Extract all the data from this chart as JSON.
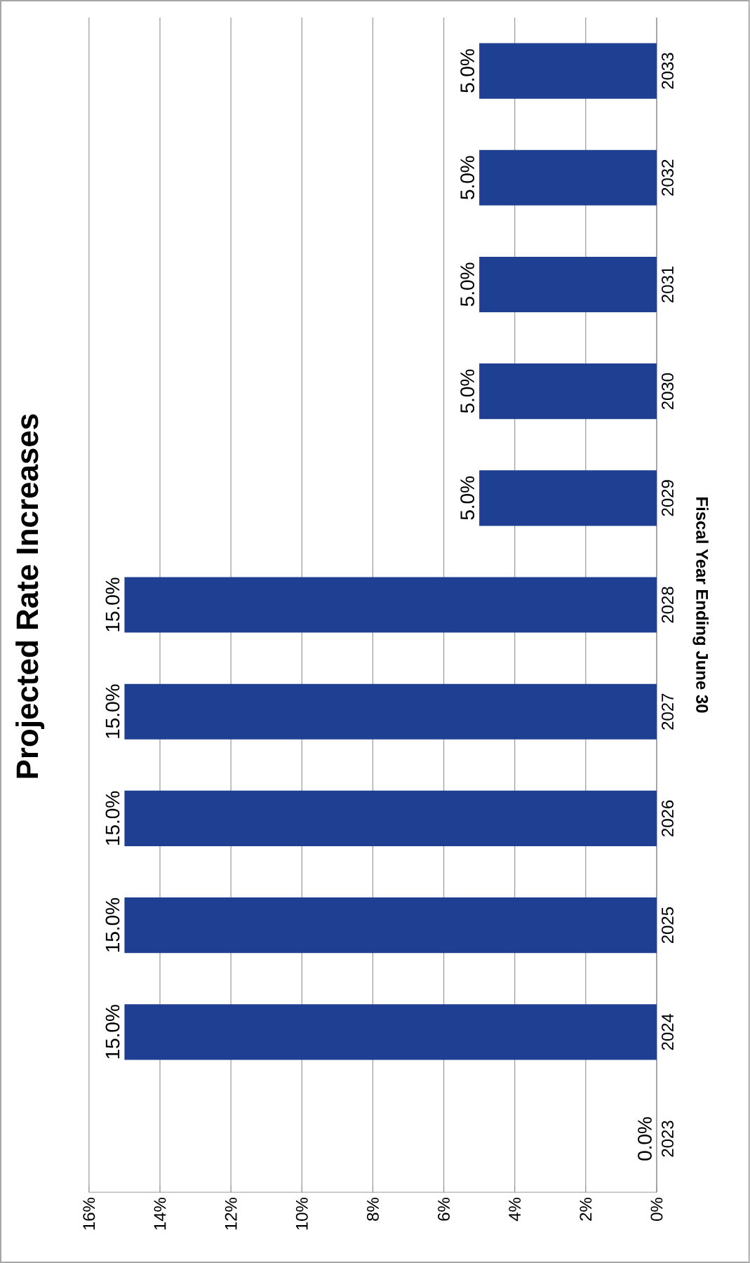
{
  "chart_data": {
    "type": "bar",
    "orientation": "horizontal",
    "title": "Projected Rate Increases",
    "ylabel": "Fiscal Year Ending June 30",
    "categories": [
      "2033",
      "2032",
      "2031",
      "2030",
      "2029",
      "2028",
      "2027",
      "2026",
      "2025",
      "2024",
      "2023"
    ],
    "values": [
      5,
      5,
      5,
      5,
      5,
      15,
      15,
      15,
      15,
      15,
      0
    ],
    "value_labels": [
      "5.0%",
      "5.0%",
      "5.0%",
      "5.0%",
      "5.0%",
      "15.0%",
      "15.0%",
      "15.0%",
      "15.0%",
      "15.0%",
      "0.0%"
    ],
    "color": "#1f3f93",
    "xlim": [
      16,
      0
    ],
    "xticks": [
      {
        "value": 16,
        "label": "16%"
      },
      {
        "value": 14,
        "label": "14%"
      },
      {
        "value": 12,
        "label": "12%"
      },
      {
        "value": 10,
        "label": "10%"
      },
      {
        "value": 8,
        "label": "8%"
      },
      {
        "value": 6,
        "label": "6%"
      },
      {
        "value": 4,
        "label": "4%"
      },
      {
        "value": 2,
        "label": "2%"
      },
      {
        "value": 0,
        "label": "0%"
      }
    ],
    "grid": "x"
  }
}
